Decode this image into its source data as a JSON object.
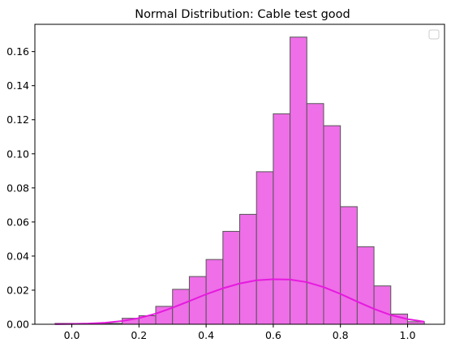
{
  "chart_data": {
    "type": "bar",
    "title": "Normal Distribution: Cable test good",
    "xlabel": "",
    "ylabel": "",
    "xlim": [
      -0.11,
      1.11
    ],
    "ylim": [
      0,
      0.176
    ],
    "grid": false,
    "legend": {
      "placement": "top-right",
      "entries": []
    },
    "x_ticks": [
      "0.0",
      "0.2",
      "0.4",
      "0.6",
      "0.8",
      "1.0"
    ],
    "x_tick_values": [
      0,
      0.2,
      0.4,
      0.6,
      0.8,
      1.0
    ],
    "y_ticks": [
      "0.00",
      "0.02",
      "0.04",
      "0.06",
      "0.08",
      "0.10",
      "0.12",
      "0.14",
      "0.16"
    ],
    "y_tick_values": [
      0,
      0.02,
      0.04,
      0.06,
      0.08,
      0.1,
      0.12,
      0.14,
      0.16
    ],
    "histogram": {
      "bin_edges": [
        -0.05,
        0.0,
        0.05,
        0.1,
        0.15,
        0.2,
        0.25,
        0.3,
        0.35,
        0.4,
        0.45,
        0.5,
        0.55,
        0.6,
        0.65,
        0.7,
        0.75,
        0.8,
        0.85,
        0.9,
        0.95,
        1.0,
        1.05
      ],
      "values": [
        0.0005,
        0.0005,
        0.0005,
        0.0005,
        0.0035,
        0.005,
        0.0105,
        0.0205,
        0.028,
        0.038,
        0.0545,
        0.0645,
        0.0895,
        0.1235,
        0.1685,
        0.1295,
        0.1165,
        0.069,
        0.0455,
        0.0225,
        0.006,
        0.0015
      ],
      "fill_color": "#ee6fe7",
      "edge_color": "#555555"
    },
    "curve": {
      "type": "line",
      "x": [
        -0.05,
        -0.0,
        0.05,
        0.1,
        0.15,
        0.2,
        0.25,
        0.3,
        0.35,
        0.4,
        0.45,
        0.5,
        0.55,
        0.6,
        0.65,
        0.7,
        0.75,
        0.8,
        0.85,
        0.9,
        0.95,
        1.0,
        1.05
      ],
      "y": [
        6e-05,
        0.00016,
        0.0004,
        0.0009,
        0.0019,
        0.0036,
        0.0062,
        0.0097,
        0.0136,
        0.0176,
        0.0211,
        0.0239,
        0.0258,
        0.0264,
        0.0262,
        0.0247,
        0.0218,
        0.0178,
        0.0133,
        0.009,
        0.0054,
        0.003,
        0.0015
      ],
      "color": "#e619df"
    }
  }
}
